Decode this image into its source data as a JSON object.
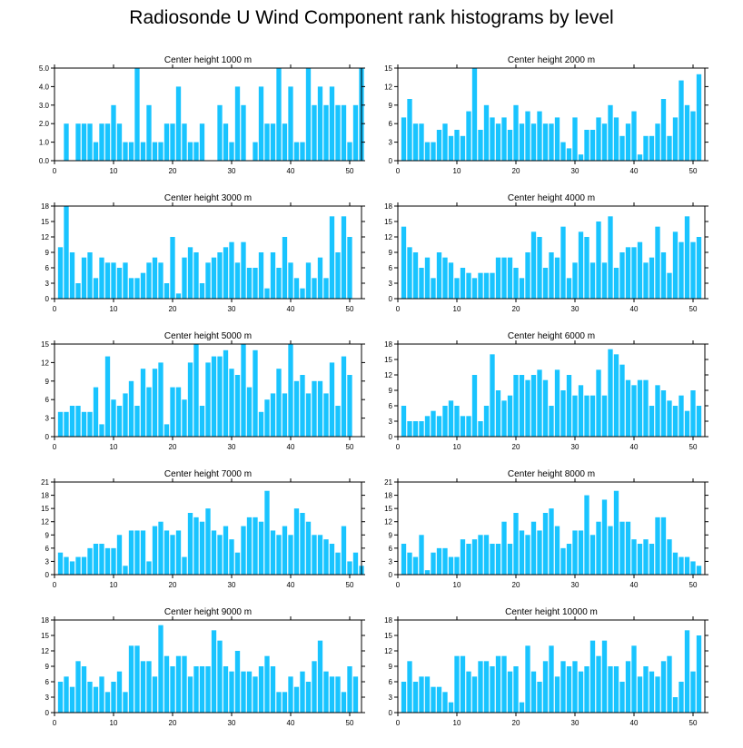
{
  "title": "Radiosonde U Wind Component rank histograms by level",
  "colors": {
    "bar": "#19c4ff",
    "axis": "#000000"
  },
  "chart_data": [
    {
      "type": "bar",
      "title": "Center height 1000 m",
      "xlim": [
        0,
        52
      ],
      "ylim": [
        0,
        5
      ],
      "xticks": [
        0,
        10,
        20,
        30,
        40,
        50
      ],
      "yticks": [
        "0.0",
        "1.0",
        "2.0",
        "3.0",
        "4.0",
        "5.0"
      ],
      "values": [
        0,
        2,
        0,
        2,
        2,
        2,
        1,
        2,
        2,
        3,
        2,
        1,
        1,
        5,
        1,
        3,
        1,
        1,
        2,
        2,
        4,
        2,
        1,
        1,
        2,
        0,
        0,
        3,
        2,
        1,
        4,
        3,
        0,
        1,
        4,
        2,
        2,
        5,
        2,
        4,
        1,
        1,
        5,
        3,
        4,
        3,
        4,
        3,
        3,
        1,
        3,
        5
      ]
    },
    {
      "type": "bar",
      "title": "Center height 2000 m",
      "xlim": [
        0,
        52
      ],
      "ylim": [
        0,
        15
      ],
      "xticks": [
        0,
        10,
        20,
        30,
        40,
        50
      ],
      "yticks": [
        "0",
        "3",
        "6",
        "9",
        "12",
        "15"
      ],
      "values": [
        7,
        10,
        6,
        6,
        3,
        3,
        5,
        6,
        4,
        5,
        4,
        8,
        15,
        5,
        9,
        7,
        6,
        7,
        5,
        9,
        6,
        8,
        6,
        8,
        6,
        6,
        7,
        3,
        2,
        7,
        1,
        5,
        5,
        7,
        6,
        9,
        7,
        4,
        6,
        8,
        1,
        4,
        4,
        6,
        10,
        4,
        7,
        13,
        9,
        8,
        14
      ]
    },
    {
      "type": "bar",
      "title": "Center height 3000 m",
      "xlim": [
        0,
        52
      ],
      "ylim": [
        0,
        18
      ],
      "xticks": [
        0,
        10,
        20,
        30,
        40,
        50
      ],
      "yticks": [
        "0",
        "3",
        "6",
        "9",
        "12",
        "15",
        "18"
      ],
      "values": [
        10,
        18,
        9,
        3,
        8,
        9,
        4,
        8,
        7,
        7,
        6,
        7,
        4,
        4,
        5,
        7,
        8,
        7,
        3,
        12,
        1,
        8,
        10,
        9,
        3,
        7,
        8,
        9,
        10,
        11,
        7,
        11,
        6,
        6,
        9,
        2,
        9,
        6,
        12,
        7,
        4,
        2,
        7,
        4,
        8,
        4,
        16,
        9,
        16,
        12
      ]
    },
    {
      "type": "bar",
      "title": "Center height 4000 m",
      "xlim": [
        0,
        52
      ],
      "ylim": [
        0,
        18
      ],
      "xticks": [
        0,
        10,
        20,
        30,
        40,
        50
      ],
      "yticks": [
        "0",
        "3",
        "6",
        "9",
        "12",
        "15",
        "18"
      ],
      "values": [
        14,
        10,
        9,
        6,
        8,
        4,
        9,
        8,
        7,
        4,
        6,
        5,
        4,
        5,
        5,
        5,
        8,
        8,
        8,
        6,
        4,
        9,
        13,
        12,
        6,
        9,
        8,
        14,
        4,
        7,
        13,
        12,
        7,
        15,
        7,
        16,
        6,
        9,
        10,
        10,
        11,
        7,
        8,
        14,
        9,
        5,
        13,
        11,
        16,
        11,
        12
      ]
    },
    {
      "type": "bar",
      "title": "Center height 5000 m",
      "xlim": [
        0,
        52
      ],
      "ylim": [
        0,
        15
      ],
      "xticks": [
        0,
        10,
        20,
        30,
        40,
        50
      ],
      "yticks": [
        "0",
        "3",
        "6",
        "9",
        "12",
        "15"
      ],
      "values": [
        4,
        4,
        5,
        5,
        4,
        4,
        8,
        2,
        13,
        6,
        5,
        7,
        9,
        5,
        11,
        8,
        11,
        12,
        2,
        8,
        8,
        6,
        12,
        15,
        5,
        12,
        13,
        13,
        14,
        11,
        10,
        15,
        8,
        14,
        4,
        6,
        7,
        11,
        7,
        15,
        9,
        10,
        7,
        9,
        9,
        7,
        12,
        5,
        13,
        10
      ]
    },
    {
      "type": "bar",
      "title": "Center height 6000 m",
      "xlim": [
        0,
        52
      ],
      "ylim": [
        0,
        18
      ],
      "xticks": [
        0,
        10,
        20,
        30,
        40,
        50
      ],
      "yticks": [
        "0",
        "3",
        "6",
        "9",
        "12",
        "15",
        "18"
      ],
      "values": [
        6,
        3,
        3,
        3,
        4,
        5,
        4,
        6,
        7,
        6,
        4,
        4,
        12,
        3,
        6,
        16,
        9,
        7,
        8,
        12,
        12,
        11,
        12,
        13,
        11,
        6,
        13,
        9,
        12,
        8,
        10,
        8,
        8,
        13,
        8,
        17,
        16,
        14,
        11,
        10,
        11,
        11,
        6,
        10,
        9,
        7,
        6,
        8,
        5,
        9,
        6
      ]
    },
    {
      "type": "bar",
      "title": "Center height 7000 m",
      "xlim": [
        0,
        52
      ],
      "ylim": [
        0,
        21
      ],
      "xticks": [
        0,
        10,
        20,
        30,
        40,
        50
      ],
      "yticks": [
        "0",
        "3",
        "6",
        "9",
        "12",
        "15",
        "18",
        "21"
      ],
      "values": [
        5,
        4,
        3,
        4,
        4,
        6,
        7,
        7,
        6,
        6,
        9,
        2,
        10,
        10,
        10,
        3,
        11,
        12,
        10,
        9,
        10,
        4,
        14,
        13,
        12,
        15,
        10,
        9,
        11,
        8,
        5,
        11,
        13,
        13,
        12,
        19,
        10,
        9,
        11,
        9,
        15,
        14,
        12,
        9,
        9,
        8,
        7,
        5,
        11,
        3,
        5,
        2
      ]
    },
    {
      "type": "bar",
      "title": "Center height 8000 m",
      "xlim": [
        0,
        52
      ],
      "ylim": [
        0,
        21
      ],
      "xticks": [
        0,
        10,
        20,
        30,
        40,
        50
      ],
      "yticks": [
        "0",
        "3",
        "6",
        "9",
        "12",
        "15",
        "18",
        "21"
      ],
      "values": [
        7,
        5,
        4,
        9,
        1,
        5,
        6,
        6,
        4,
        4,
        8,
        7,
        8,
        9,
        9,
        7,
        7,
        12,
        7,
        14,
        10,
        9,
        12,
        10,
        14,
        15,
        11,
        6,
        7,
        10,
        10,
        18,
        9,
        12,
        17,
        11,
        19,
        12,
        12,
        8,
        7,
        8,
        7,
        13,
        13,
        8,
        5,
        4,
        4,
        3,
        2
      ]
    },
    {
      "type": "bar",
      "title": "Center height 9000 m",
      "xlim": [
        0,
        52
      ],
      "ylim": [
        0,
        18
      ],
      "xticks": [
        0,
        10,
        20,
        30,
        40,
        50
      ],
      "yticks": [
        "0",
        "3",
        "6",
        "9",
        "12",
        "15",
        "18"
      ],
      "values": [
        6,
        7,
        5,
        10,
        9,
        6,
        5,
        7,
        4,
        6,
        8,
        4,
        13,
        13,
        10,
        10,
        7,
        17,
        11,
        9,
        11,
        11,
        7,
        9,
        9,
        9,
        16,
        14,
        9,
        8,
        12,
        8,
        8,
        7,
        9,
        11,
        9,
        4,
        4,
        7,
        5,
        8,
        6,
        10,
        14,
        8,
        7,
        7,
        4,
        9,
        7
      ]
    },
    {
      "type": "bar",
      "title": "Center height 10000 m",
      "xlim": [
        0,
        52
      ],
      "ylim": [
        0,
        18
      ],
      "xticks": [
        0,
        10,
        20,
        30,
        40,
        50
      ],
      "yticks": [
        "0",
        "3",
        "6",
        "9",
        "12",
        "15",
        "18"
      ],
      "values": [
        6,
        10,
        6,
        7,
        7,
        5,
        5,
        4,
        2,
        11,
        11,
        8,
        7,
        10,
        10,
        9,
        11,
        11,
        8,
        9,
        2,
        13,
        8,
        6,
        10,
        13,
        7,
        10,
        9,
        10,
        8,
        9,
        14,
        11,
        14,
        9,
        9,
        6,
        10,
        13,
        7,
        9,
        8,
        7,
        10,
        11,
        3,
        6,
        16,
        8,
        15
      ]
    }
  ]
}
